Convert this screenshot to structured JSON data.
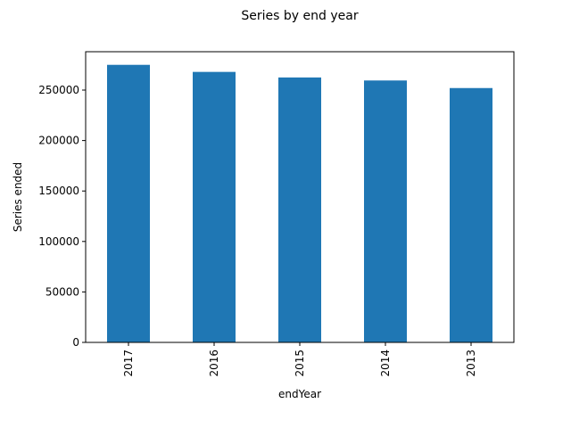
{
  "chart_data": {
    "type": "bar",
    "title": "Series by end year",
    "xlabel": "endYear",
    "ylabel": "Series ended",
    "categories": [
      "2017",
      "2016",
      "2015",
      "2014",
      "2013"
    ],
    "values": [
      275000,
      268000,
      262500,
      259500,
      252000
    ],
    "ylim": [
      0,
      288000
    ],
    "yticks": [
      0,
      50000,
      100000,
      150000,
      200000,
      250000
    ],
    "ytick_labels": [
      "0",
      "50000",
      "100000",
      "150000",
      "200000",
      "250000"
    ],
    "grid": false,
    "legend": "none",
    "bar_color": "#1f77b4"
  }
}
